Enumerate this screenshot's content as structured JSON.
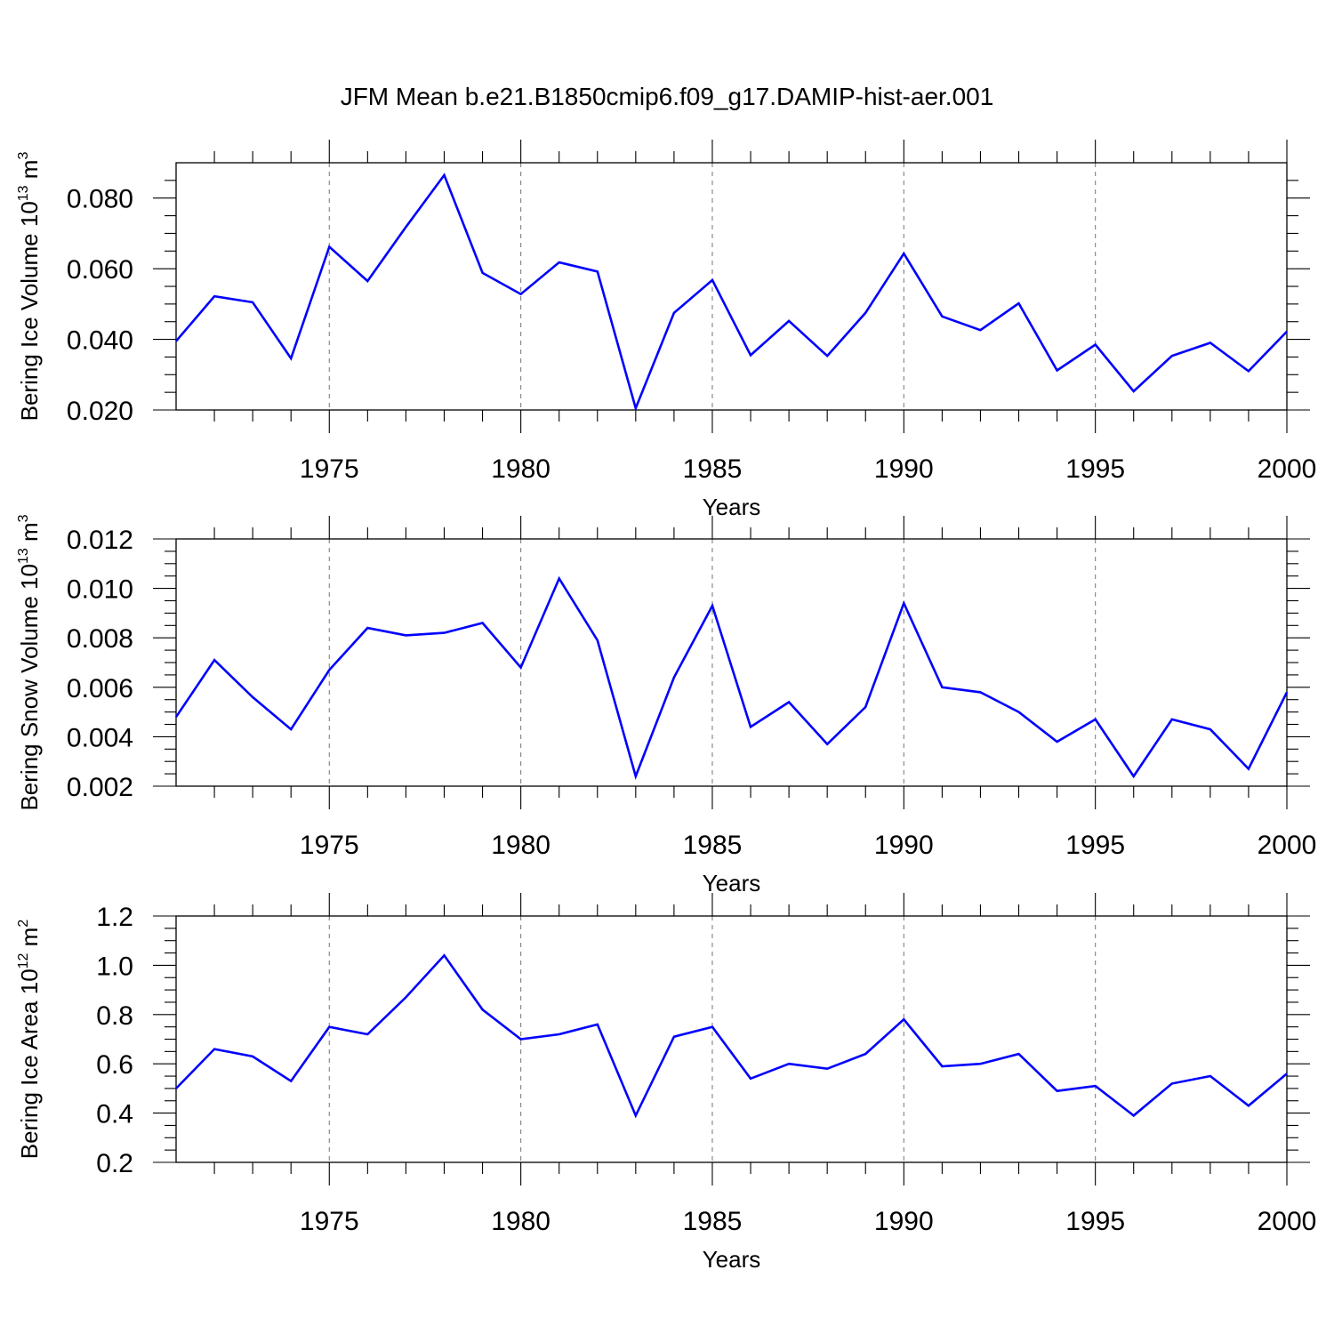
{
  "title": "JFM Mean b.e21.B1850cmip6.f09_g17.DAMIP-hist-aer.001",
  "colors": {
    "series": "#0000ff",
    "axis": "#000000",
    "grid": "#808080"
  },
  "chart_data": [
    {
      "type": "line",
      "ylabel_base": "Bering Ice Volume 10",
      "ylabel_exp": "13",
      "ylabel_unit": " m",
      "ylabel_unit_exp": "3",
      "xlabel": "Years",
      "xlim": [
        1971,
        2000
      ],
      "ylim": [
        0.02,
        0.09
      ],
      "yticks": [
        0.02,
        0.04,
        0.06,
        0.08
      ],
      "ytick_labels": [
        "0.020",
        "0.040",
        "0.060",
        "0.080"
      ],
      "yminor_step": 0.005,
      "xticks": [
        1975,
        1980,
        1985,
        1990,
        1995,
        2000
      ],
      "xtick_labels": [
        "1975",
        "1980",
        "1985",
        "1990",
        "1995",
        "2000"
      ],
      "grid": "dashed vertical at major x ticks",
      "x": [
        1971,
        1972,
        1973,
        1974,
        1975,
        1976,
        1977,
        1978,
        1979,
        1980,
        1981,
        1982,
        1983,
        1984,
        1985,
        1986,
        1987,
        1988,
        1989,
        1990,
        1991,
        1992,
        1993,
        1994,
        1995,
        1996,
        1997,
        1998,
        1999,
        2000
      ],
      "values": [
        0.0395,
        0.0522,
        0.0505,
        0.0346,
        0.0662,
        0.0565,
        0.0718,
        0.0865,
        0.0588,
        0.0528,
        0.0618,
        0.0592,
        0.0205,
        0.0475,
        0.0568,
        0.0355,
        0.0452,
        0.0353,
        0.0475,
        0.0643,
        0.0465,
        0.0426,
        0.0502,
        0.0312,
        0.0385,
        0.0253,
        0.0353,
        0.039,
        0.031,
        0.0422
      ]
    },
    {
      "type": "line",
      "ylabel_base": "Bering Snow Volume 10",
      "ylabel_exp": "13",
      "ylabel_unit": " m",
      "ylabel_unit_exp": "3",
      "xlabel": "Years",
      "xlim": [
        1971,
        2000
      ],
      "ylim": [
        0.002,
        0.012
      ],
      "yticks": [
        0.002,
        0.004,
        0.006,
        0.008,
        0.01,
        0.012
      ],
      "ytick_labels": [
        "0.002",
        "0.004",
        "0.006",
        "0.008",
        "0.010",
        "0.012"
      ],
      "yminor_step": 0.0005,
      "xticks": [
        1975,
        1980,
        1985,
        1990,
        1995,
        2000
      ],
      "xtick_labels": [
        "1975",
        "1980",
        "1985",
        "1990",
        "1995",
        "2000"
      ],
      "grid": "dashed vertical at major x ticks",
      "x": [
        1971,
        1972,
        1973,
        1974,
        1975,
        1976,
        1977,
        1978,
        1979,
        1980,
        1981,
        1982,
        1983,
        1984,
        1985,
        1986,
        1987,
        1988,
        1989,
        1990,
        1991,
        1992,
        1993,
        1994,
        1995,
        1996,
        1997,
        1998,
        1999,
        2000
      ],
      "values": [
        0.0048,
        0.0071,
        0.0056,
        0.0043,
        0.0067,
        0.0084,
        0.0081,
        0.0082,
        0.0086,
        0.0068,
        0.0104,
        0.0079,
        0.0024,
        0.0064,
        0.0093,
        0.0044,
        0.0054,
        0.0037,
        0.0052,
        0.0094,
        0.006,
        0.0058,
        0.005,
        0.0038,
        0.0047,
        0.0024,
        0.0047,
        0.0043,
        0.0027,
        0.0058
      ]
    },
    {
      "type": "line",
      "ylabel_base": "Bering Ice Area 10",
      "ylabel_exp": "12",
      "ylabel_unit": " m",
      "ylabel_unit_exp": "2",
      "xlabel": "Years",
      "xlim": [
        1971,
        2000
      ],
      "ylim": [
        0.2,
        1.2
      ],
      "yticks": [
        0.2,
        0.4,
        0.6,
        0.8,
        1.0,
        1.2
      ],
      "ytick_labels": [
        "0.2",
        "0.4",
        "0.6",
        "0.8",
        "1.0",
        "1.2"
      ],
      "yminor_step": 0.05,
      "xticks": [
        1975,
        1980,
        1985,
        1990,
        1995,
        2000
      ],
      "xtick_labels": [
        "1975",
        "1980",
        "1985",
        "1990",
        "1995",
        "2000"
      ],
      "grid": "dashed vertical at major x ticks",
      "x": [
        1971,
        1972,
        1973,
        1974,
        1975,
        1976,
        1977,
        1978,
        1979,
        1980,
        1981,
        1982,
        1983,
        1984,
        1985,
        1986,
        1987,
        1988,
        1989,
        1990,
        1991,
        1992,
        1993,
        1994,
        1995,
        1996,
        1997,
        1998,
        1999,
        2000
      ],
      "values": [
        0.5,
        0.66,
        0.63,
        0.53,
        0.75,
        0.72,
        0.87,
        1.04,
        0.82,
        0.7,
        0.72,
        0.76,
        0.39,
        0.71,
        0.75,
        0.54,
        0.6,
        0.58,
        0.64,
        0.78,
        0.59,
        0.6,
        0.64,
        0.49,
        0.51,
        0.39,
        0.52,
        0.55,
        0.43,
        0.56
      ]
    }
  ]
}
